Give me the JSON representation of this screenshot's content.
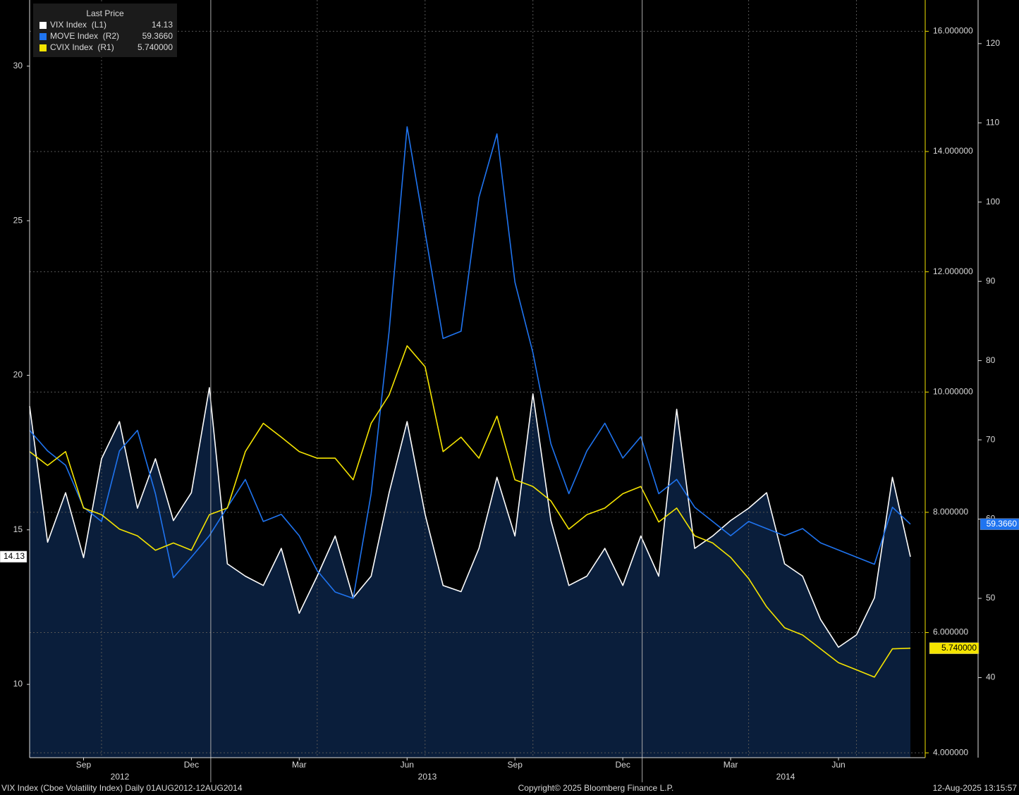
{
  "chart_data": {
    "type": "line",
    "legend_title": "Last Price",
    "categories": [
      null,
      null,
      null,
      "Sep",
      null,
      null,
      null,
      null,
      null,
      "Dec",
      null,
      null,
      null,
      null,
      null,
      "Mar",
      null,
      null,
      null,
      null,
      null,
      "Jun",
      null,
      null,
      null,
      null,
      null,
      "Sep",
      null,
      null,
      null,
      null,
      null,
      "Dec",
      null,
      null,
      null,
      null,
      null,
      "Mar",
      null,
      null,
      null,
      null,
      null,
      "Jun",
      null,
      null,
      null,
      null
    ],
    "year_labels": [
      "2012",
      "2013",
      "2014"
    ],
    "series": [
      {
        "name": "VIX Index  (L1)",
        "last_price": "14.13",
        "color": "#ffffff",
        "fill": "#0a1e3b",
        "axis": "y",
        "values": [
          19.0,
          14.6,
          16.2,
          14.1,
          17.3,
          18.5,
          15.7,
          17.3,
          15.3,
          16.2,
          19.6,
          13.9,
          13.5,
          13.2,
          14.4,
          12.3,
          13.5,
          14.8,
          12.8,
          13.5,
          16.2,
          18.5,
          15.5,
          13.2,
          13.0,
          14.4,
          16.7,
          14.8,
          19.4,
          15.3,
          13.2,
          13.5,
          14.4,
          13.2,
          14.8,
          13.5,
          18.9,
          14.4,
          14.8,
          15.3,
          15.7,
          16.2,
          13.9,
          13.5,
          12.1,
          11.2,
          11.6,
          12.8,
          16.7,
          14.13
        ]
      },
      {
        "name": "MOVE Index  (R2)",
        "last_price": "59.3660",
        "color": "#1f74f0",
        "axis": "y3",
        "values": [
          71.2,
          68.6,
          66.8,
          61.5,
          59.7,
          68.6,
          71.2,
          63.2,
          52.6,
          55.2,
          57.9,
          61.5,
          65.0,
          59.7,
          60.6,
          57.9,
          53.5,
          50.8,
          50.0,
          63.2,
          83.7,
          109.5,
          96.2,
          82.8,
          83.7,
          100.6,
          108.6,
          89.9,
          81.0,
          69.5,
          63.2,
          68.6,
          72.1,
          67.7,
          70.4,
          63.2,
          65.0,
          61.5,
          59.7,
          57.9,
          59.7,
          58.8,
          57.9,
          58.8,
          57.0,
          56.1,
          55.2,
          54.3,
          61.5,
          59.366
        ]
      },
      {
        "name": "CVIX Index  (R1)",
        "last_price": "5.740000",
        "color": "#f5e400",
        "axis": "y2",
        "values": [
          9.01,
          8.78,
          9.01,
          8.07,
          7.96,
          7.72,
          7.61,
          7.37,
          7.49,
          7.37,
          7.96,
          8.07,
          9.01,
          9.48,
          9.25,
          9.01,
          8.9,
          8.9,
          8.54,
          9.48,
          9.95,
          10.77,
          10.42,
          9.01,
          9.25,
          8.9,
          9.6,
          8.54,
          8.43,
          8.19,
          7.72,
          7.96,
          8.07,
          8.31,
          8.43,
          7.84,
          8.07,
          7.61,
          7.49,
          7.25,
          6.9,
          6.43,
          6.08,
          5.96,
          5.73,
          5.5,
          5.38,
          5.26,
          5.73,
          5.74
        ]
      }
    ],
    "ylim": [
      7.63,
      32.14
    ],
    "yticks": [
      10,
      15,
      20,
      25,
      30
    ],
    "y2lim": [
      3.92,
      16.52
    ],
    "y2ticks": [
      {
        "value": 4,
        "label": "4.000000"
      },
      {
        "value": 6,
        "label": "6.000000"
      },
      {
        "value": 8,
        "label": "8.000000"
      },
      {
        "value": 10,
        "label": "10.000000"
      },
      {
        "value": 12,
        "label": "12.000000"
      },
      {
        "value": 14,
        "label": "14.000000"
      },
      {
        "value": 16,
        "label": "16.000000"
      }
    ],
    "y3lim": [
      29.9,
      125.5
    ],
    "y3ticks": [
      40,
      50,
      60,
      70,
      80,
      90,
      100,
      110,
      120
    ],
    "grid": true
  },
  "footer": {
    "left": "VIX Index (Cboe Volatility Index)  Daily 01AUG2012-12AUG2014",
    "center": "Copyright© 2025 Bloomberg Finance L.P.",
    "right": "12-Aug-2025 13:15:57"
  }
}
